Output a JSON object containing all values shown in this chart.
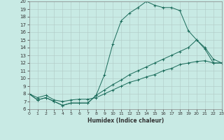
{
  "xlabel": "Humidex (Indice chaleur)",
  "xlim": [
    0,
    23
  ],
  "ylim": [
    6,
    20
  ],
  "xticks": [
    0,
    1,
    2,
    3,
    4,
    5,
    6,
    7,
    8,
    9,
    10,
    11,
    12,
    13,
    14,
    15,
    16,
    17,
    18,
    19,
    20,
    21,
    22,
    23
  ],
  "yticks": [
    6,
    7,
    8,
    9,
    10,
    11,
    12,
    13,
    14,
    15,
    16,
    17,
    18,
    19,
    20
  ],
  "bg_color": "#c8eae4",
  "grid_color": "#b0c8c4",
  "line_color": "#1a6b5a",
  "curve1_x": [
    0,
    1,
    2,
    3,
    4,
    5,
    6,
    7,
    8,
    9,
    10,
    11,
    12,
    13,
    14,
    15,
    16,
    17,
    18,
    19,
    20,
    21,
    22,
    23
  ],
  "curve1_y": [
    8.0,
    7.2,
    7.5,
    7.0,
    6.5,
    6.8,
    6.8,
    6.8,
    7.8,
    10.5,
    14.5,
    17.5,
    18.5,
    19.2,
    20.0,
    19.5,
    19.2,
    19.2,
    18.8,
    16.2,
    15.0,
    13.8,
    12.0,
    12.0
  ],
  "curve2_x": [
    0,
    1,
    2,
    3,
    4,
    5,
    6,
    7,
    8,
    9,
    10,
    11,
    12,
    13,
    14,
    15,
    16,
    17,
    18,
    19,
    20,
    21,
    22,
    23
  ],
  "curve2_y": [
    8.0,
    7.2,
    7.5,
    7.0,
    6.5,
    6.8,
    6.8,
    6.8,
    7.8,
    8.5,
    9.2,
    9.8,
    10.5,
    11.0,
    11.5,
    12.0,
    12.5,
    13.0,
    13.5,
    14.0,
    15.0,
    14.0,
    12.5,
    12.0
  ],
  "curve3_x": [
    0,
    1,
    2,
    3,
    4,
    5,
    6,
    7,
    8,
    9,
    10,
    11,
    12,
    13,
    14,
    15,
    16,
    17,
    18,
    19,
    20,
    21,
    22,
    23
  ],
  "curve3_y": [
    8.0,
    7.5,
    7.8,
    7.2,
    7.0,
    7.2,
    7.3,
    7.3,
    7.5,
    8.0,
    8.5,
    9.0,
    9.5,
    9.8,
    10.2,
    10.5,
    11.0,
    11.3,
    11.8,
    12.0,
    12.2,
    12.3,
    12.0,
    12.0
  ]
}
